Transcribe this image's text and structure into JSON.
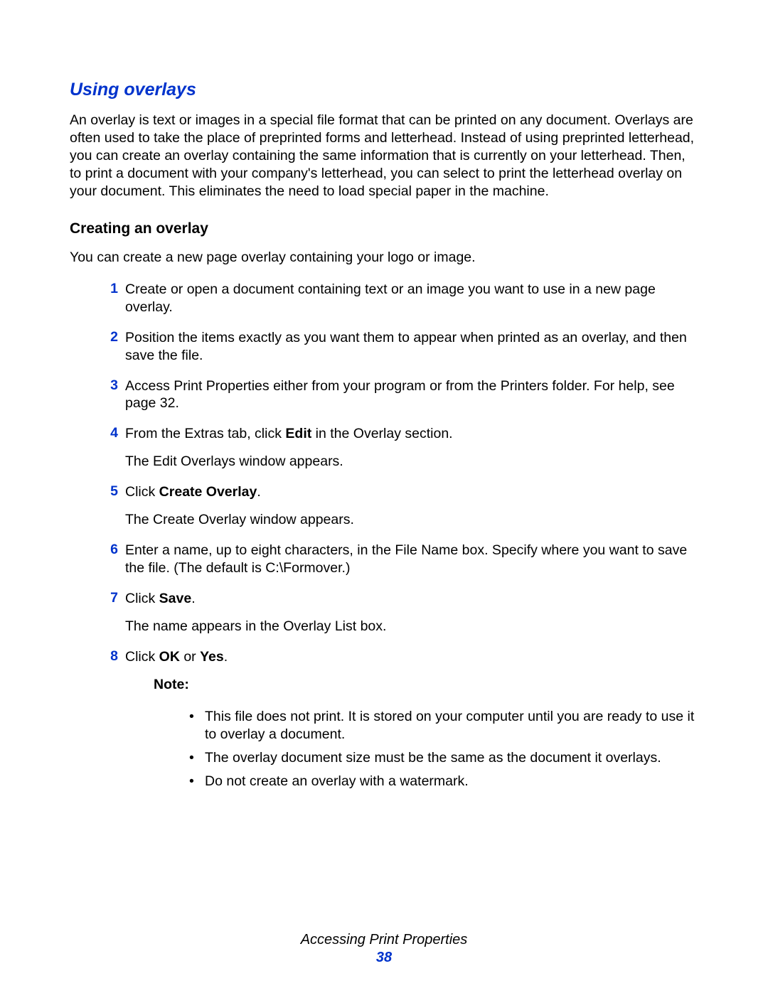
{
  "colors": {
    "accent": "#0033cc",
    "text": "#000000",
    "background": "#ffffff"
  },
  "section_title": "Using overlays",
  "intro": "An overlay is text or images in a special file format that can be printed on any document. Overlays are often used to take the place of preprinted forms and letterhead. Instead of using preprinted letterhead, you can create an overlay containing the same information that is currently on your letterhead. Then, to print a document with your company's letterhead, you can select to print the letterhead overlay on your document. This eliminates the need to load special paper in the machine.",
  "subhead": "Creating an overlay",
  "subintro": "You can create a new page overlay containing your logo or image.",
  "steps": [
    {
      "num": "1",
      "paras": [
        {
          "runs": [
            {
              "t": "Create or open a document containing text or an image you want to use in a new page overlay."
            }
          ]
        }
      ]
    },
    {
      "num": "2",
      "paras": [
        {
          "runs": [
            {
              "t": "Position the items exactly as you want them to appear when printed as an overlay, and then save the file."
            }
          ]
        }
      ]
    },
    {
      "num": "3",
      "paras": [
        {
          "runs": [
            {
              "t": "Access Print Properties either from your program or from the Printers folder. For help, see page 32."
            }
          ]
        }
      ]
    },
    {
      "num": "4",
      "paras": [
        {
          "runs": [
            {
              "t": "From the Extras tab, click "
            },
            {
              "t": "Edit",
              "bold": true
            },
            {
              "t": " in the Overlay section."
            }
          ]
        },
        {
          "runs": [
            {
              "t": "The Edit Overlays window appears."
            }
          ]
        }
      ]
    },
    {
      "num": "5",
      "paras": [
        {
          "runs": [
            {
              "t": "Click "
            },
            {
              "t": "Create Overlay",
              "bold": true
            },
            {
              "t": "."
            }
          ]
        },
        {
          "runs": [
            {
              "t": "The Create Overlay window appears."
            }
          ]
        }
      ]
    },
    {
      "num": "6",
      "paras": [
        {
          "runs": [
            {
              "t": "Enter a name, up to eight characters, in the File Name box. Specify where you want to save the file. (The default is C:\\Formover.)"
            }
          ]
        }
      ]
    },
    {
      "num": "7",
      "paras": [
        {
          "runs": [
            {
              "t": "Click "
            },
            {
              "t": "Save",
              "bold": true
            },
            {
              "t": "."
            }
          ]
        },
        {
          "runs": [
            {
              "t": "The name appears in the Overlay List box."
            }
          ]
        }
      ]
    },
    {
      "num": "8",
      "paras": [
        {
          "runs": [
            {
              "t": "Click "
            },
            {
              "t": "OK",
              "bold": true
            },
            {
              "t": " or "
            },
            {
              "t": "Yes",
              "bold": true
            },
            {
              "t": "."
            }
          ]
        }
      ]
    }
  ],
  "note_label": "Note:",
  "note_bullets": [
    "This file does not print. It is stored on your computer until you are ready to use it to overlay a document.",
    "The overlay document size must be the same as the document it overlays.",
    "Do not create an overlay with a watermark."
  ],
  "footer_title": "Accessing Print Properties",
  "footer_page": "38"
}
